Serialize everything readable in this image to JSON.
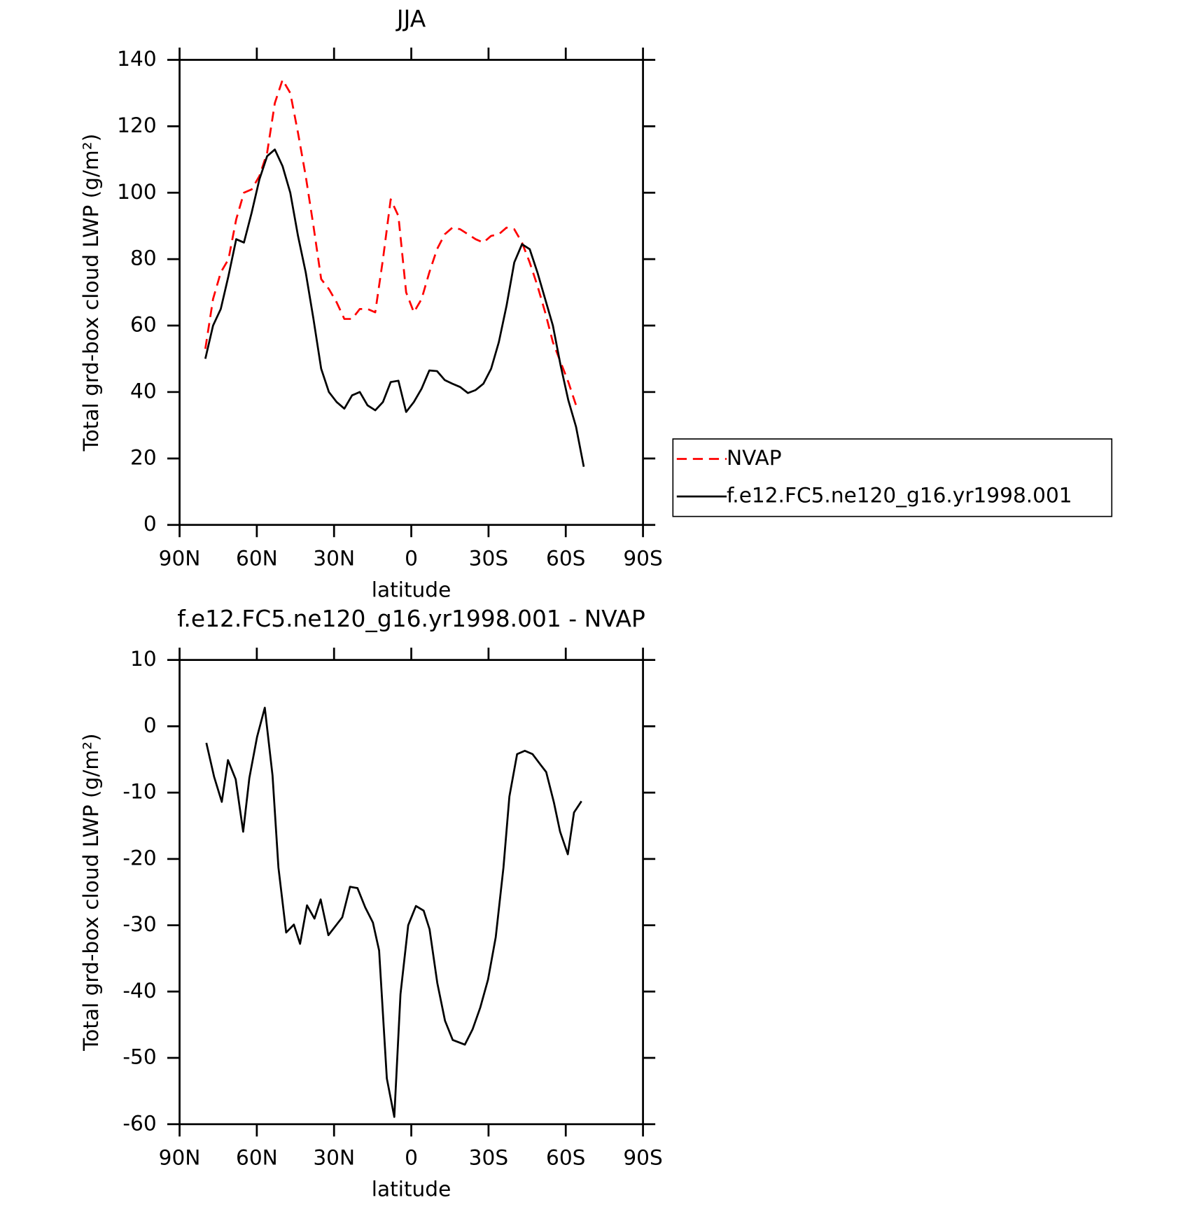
{
  "chart_data": [
    {
      "type": "line",
      "title": "JJA",
      "xlabel": "latitude",
      "ylabel": "Total grd-box cloud LWP (g/m²)",
      "x": [
        80,
        77,
        74,
        71,
        68,
        65,
        62,
        59,
        56,
        53,
        50,
        47,
        44,
        41,
        38,
        35,
        32,
        29,
        26,
        23,
        20,
        17,
        14,
        11,
        8,
        5,
        2,
        -1,
        -4,
        -7,
        -10,
        -13,
        -16,
        -19,
        -22,
        -25,
        -28,
        -31,
        -34,
        -37,
        -40,
        -43,
        -46,
        -49,
        -52,
        -55,
        -58,
        -61,
        -64,
        -67
      ],
      "series": [
        {
          "name": "NVAP",
          "color": "#ff0000",
          "dashed": true,
          "values": [
            53,
            68,
            76,
            80,
            92,
            100,
            101,
            105,
            112,
            127,
            134,
            130,
            118,
            105,
            90,
            74,
            71,
            67,
            62,
            62,
            65,
            65,
            64,
            80,
            98,
            93,
            70,
            64,
            68,
            76,
            83,
            87.5,
            89.5,
            89,
            87.5,
            86,
            85,
            87,
            87.5,
            89.5,
            89,
            85,
            79,
            72,
            64,
            55,
            49,
            43,
            36,
            null
          ]
        },
        {
          "name": "f.e12.FC5.ne120_g16.yr1998.001",
          "color": "#000000",
          "dashed": false,
          "values": [
            50,
            60,
            65,
            75,
            86,
            85,
            94,
            104,
            111,
            113,
            108,
            100,
            87,
            76,
            62,
            47,
            40,
            37,
            35,
            39,
            40,
            36,
            34.5,
            37,
            43,
            43.4,
            34,
            37,
            41,
            46.5,
            46.3,
            43.6,
            42.5,
            41.5,
            39.7,
            40.6,
            42.5,
            47,
            55,
            66,
            79,
            84.5,
            83,
            76,
            68,
            60,
            48,
            37.5,
            29.5,
            17.5
          ]
        }
      ],
      "xlim": [
        90,
        -90
      ],
      "xticks": [
        {
          "value": 90,
          "label": "90N"
        },
        {
          "value": 60,
          "label": "60N"
        },
        {
          "value": 30,
          "label": "30N"
        },
        0,
        {
          "value": -30,
          "label": "30S"
        },
        {
          "value": -60,
          "label": "60S"
        },
        {
          "value": -90,
          "label": "90S"
        }
      ],
      "ylim": [
        0,
        140
      ],
      "yticks": [
        0,
        20,
        40,
        60,
        80,
        100,
        120,
        140
      ],
      "legend": "right"
    },
    {
      "type": "line",
      "title": "f.e12.FC5.ne120_g16.yr1998.001 - NVAP",
      "xlabel": "latitude",
      "ylabel": "Total grd-box cloud LWP (g/m²)",
      "x": [
        79.6,
        76.6,
        73.6,
        71.2,
        68.2,
        65.3,
        62.9,
        59.9,
        56.9,
        53.9,
        51.6,
        48.6,
        45.6,
        43.2,
        40.5,
        37.6,
        35.2,
        32.2,
        29.2,
        26.8,
        23.8,
        20.9,
        17.9,
        14.9,
        12.5,
        9.5,
        6.6,
        4.2,
        1.2,
        -1.8,
        -4.8,
        -7.1,
        -10.1,
        -13.1,
        -16.1,
        -20.8,
        -23.8,
        -26.8,
        -29.8,
        -32.8,
        -35.8,
        -38.1,
        -41.1,
        -44.1,
        -47.1,
        -50,
        -52.4,
        -55.4,
        -57.8,
        -60.8,
        -63.2,
        -66.1
      ],
      "series": [
        {
          "color": "#000000",
          "dashed": false,
          "values": [
            -2.5,
            -7.6,
            -11.4,
            -5.1,
            -8,
            -15.9,
            -7.8,
            -1.6,
            2.8,
            -7.4,
            -21.3,
            -31.1,
            -29.9,
            -32.8,
            -27,
            -29,
            -26.1,
            -31.5,
            -30,
            -28.8,
            -24.2,
            -24.4,
            -27.3,
            -29.6,
            -33.8,
            -53.1,
            -58.9,
            -40.4,
            -30,
            -27.1,
            -27.8,
            -30.6,
            -38.7,
            -44.4,
            -47.3,
            -48,
            -45.7,
            -42.4,
            -38.2,
            -31.8,
            -21.3,
            -10.6,
            -4.2,
            -3.7,
            -4.2,
            -5.7,
            -6.9,
            -11.5,
            -15.9,
            -19.3,
            -13,
            -11.3
          ]
        }
      ],
      "xlim": [
        90,
        -90
      ],
      "xticks": [
        {
          "value": 90,
          "label": "90N"
        },
        {
          "value": 60,
          "label": "60N"
        },
        {
          "value": 30,
          "label": "30N"
        },
        0,
        {
          "value": -30,
          "label": "30S"
        },
        {
          "value": -60,
          "label": "60S"
        },
        {
          "value": -90,
          "label": "90S"
        }
      ],
      "ylim": [
        -60,
        10
      ],
      "yticks": [
        -60,
        -50,
        -40,
        -30,
        -20,
        -10,
        0,
        10
      ]
    }
  ]
}
